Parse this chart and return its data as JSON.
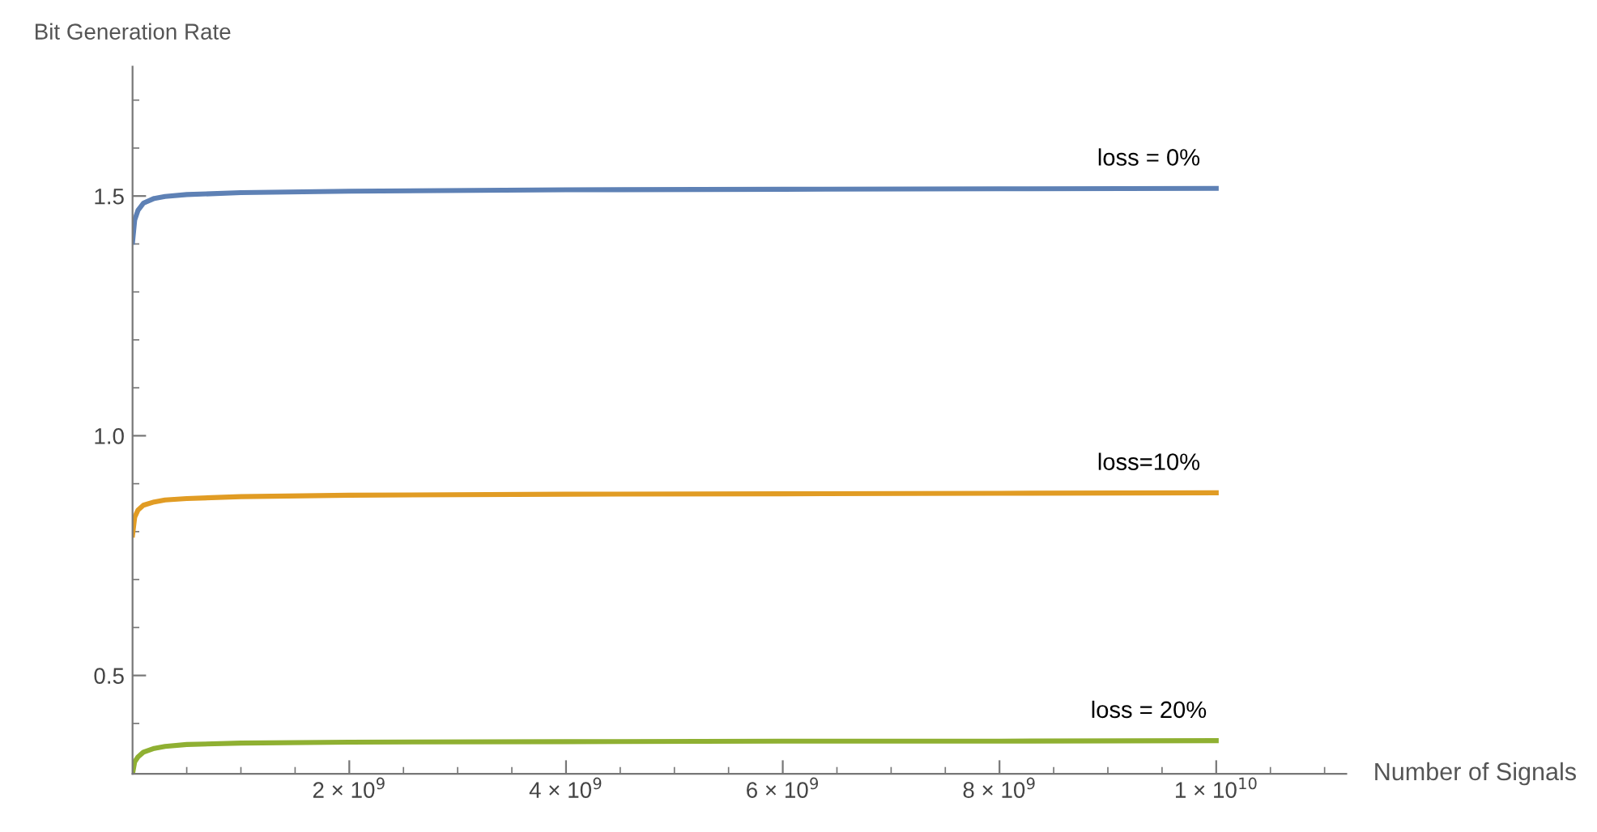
{
  "chart_data": {
    "type": "line",
    "xlabel": "Number of Signals",
    "ylabel": "Bit Generation Rate",
    "x": [
      0,
      20000000,
      50000000,
      100000000,
      200000000,
      300000000,
      500000000,
      1000000000,
      2000000000,
      4000000000,
      6000000000,
      8000000000,
      10000000000
    ],
    "series": [
      {
        "name": "loss = 0%",
        "color": "#5e81b5",
        "values": [
          1.404,
          1.45,
          1.47,
          1.485,
          1.495,
          1.499,
          1.503,
          1.507,
          1.51,
          1.513,
          1.514,
          1.515,
          1.516
        ]
      },
      {
        "name": "loss=10%",
        "color": "#e19c24",
        "values": [
          0.793,
          0.83,
          0.845,
          0.855,
          0.862,
          0.866,
          0.869,
          0.873,
          0.876,
          0.878,
          0.879,
          0.88,
          0.881
        ]
      },
      {
        "name": "loss = 20%",
        "color": "#8fb032",
        "values": [
          0.295,
          0.32,
          0.33,
          0.34,
          0.348,
          0.352,
          0.356,
          0.359,
          0.361,
          0.362,
          0.363,
          0.363,
          0.364
        ]
      }
    ],
    "xlim": [
      0,
      11200000000
    ],
    "ylim": [
      0.295,
      1.77
    ],
    "xticks": [
      {
        "value": 500000000,
        "label": null
      },
      {
        "value": 1000000000,
        "label": null
      },
      {
        "value": 1500000000,
        "label": null
      },
      {
        "value": 2000000000,
        "label": "2 × 10$^{9}$"
      },
      {
        "value": 2500000000,
        "label": null
      },
      {
        "value": 3000000000,
        "label": null
      },
      {
        "value": 3500000000,
        "label": null
      },
      {
        "value": 4000000000,
        "label": "4 × 10$^{9}$"
      },
      {
        "value": 4500000000,
        "label": null
      },
      {
        "value": 5000000000,
        "label": null
      },
      {
        "value": 5500000000,
        "label": null
      },
      {
        "value": 6000000000,
        "label": "6 × 10$^{9}$"
      },
      {
        "value": 6500000000,
        "label": null
      },
      {
        "value": 7000000000,
        "label": null
      },
      {
        "value": 7500000000,
        "label": null
      },
      {
        "value": 8000000000,
        "label": "8 × 10$^{9}$"
      },
      {
        "value": 8500000000,
        "label": null
      },
      {
        "value": 9000000000,
        "label": null
      },
      {
        "value": 9500000000,
        "label": null
      },
      {
        "value": 10000000000,
        "label": "1 × 10$^{10}$"
      },
      {
        "value": 10500000000,
        "label": null
      },
      {
        "value": 11000000000,
        "label": null
      }
    ],
    "yticks": [
      {
        "value": 0.4,
        "label": null
      },
      0.5,
      {
        "value": 0.6,
        "label": null
      },
      {
        "value": 0.7,
        "label": null
      },
      {
        "value": 0.8,
        "label": null
      },
      {
        "value": 0.9,
        "label": null
      },
      {
        "value": 1.0,
        "label": "1.0"
      },
      {
        "value": 1.1,
        "label": null
      },
      {
        "value": 1.2,
        "label": null
      },
      {
        "value": 1.3,
        "label": null
      },
      {
        "value": 1.4,
        "label": null
      },
      1.5,
      {
        "value": 1.6,
        "label": null
      },
      {
        "value": 1.7,
        "label": null
      }
    ],
    "grid": false,
    "marker": "none",
    "line_style": "solid"
  }
}
